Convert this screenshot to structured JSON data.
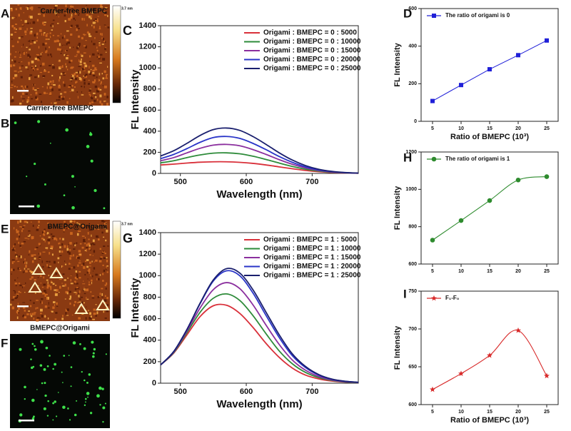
{
  "figure": {
    "images": [
      {
        "letter": "A",
        "caption": "Carrier-free BMEPC",
        "colorbar": "3.7 nm"
      },
      {
        "letter": "B",
        "caption": "Carrier-free BMEPC"
      },
      {
        "letter": "E",
        "caption": "BMEPC@Origami",
        "colorbar": "3.7 nm"
      },
      {
        "letter": "F",
        "caption": "BMEPC@Origami"
      }
    ]
  },
  "chart_data": [
    {
      "type": "line",
      "letter": "C",
      "xlabel": "Wavelength (nm)",
      "ylabel": "FL Intensity",
      "x": [
        470,
        490,
        510,
        530,
        550,
        570,
        590,
        610,
        630,
        650,
        670,
        690,
        710,
        730,
        750,
        770
      ],
      "xlim": [
        470,
        770
      ],
      "xticks": [
        500,
        600,
        700
      ],
      "ylim": [
        0,
        1400
      ],
      "yticks": [
        0,
        200,
        400,
        600,
        800,
        1000,
        1200,
        1400
      ],
      "smooth": true,
      "marker": "none",
      "legend": "upper right",
      "series": [
        {
          "name": "Origami : BMEPC = 0 : 5000",
          "color": "#d9303a",
          "values": [
            80,
            88,
            98,
            106,
            110,
            110,
            105,
            95,
            80,
            62,
            44,
            28,
            16,
            8,
            4,
            2
          ]
        },
        {
          "name": "Origami : BMEPC = 0 : 10000",
          "color": "#2e8b3a",
          "values": [
            100,
            120,
            150,
            175,
            192,
            195,
            186,
            163,
            132,
            98,
            66,
            40,
            22,
            11,
            5,
            2
          ]
        },
        {
          "name": "Origami : BMEPC = 0 : 15000",
          "color": "#8b2f9e",
          "values": [
            120,
            150,
            195,
            238,
            268,
            275,
            262,
            226,
            180,
            130,
            86,
            52,
            28,
            14,
            6,
            2
          ]
        },
        {
          "name": "Origami : BMEPC = 0 : 20000",
          "color": "#2a35c8",
          "values": [
            140,
            180,
            235,
            295,
            340,
            350,
            332,
            285,
            225,
            160,
            105,
            62,
            33,
            16,
            7,
            3
          ]
        },
        {
          "name": "Origami : BMEPC = 0 : 25000",
          "color": "#1a1f6e",
          "values": [
            165,
            215,
            285,
            360,
            415,
            430,
            408,
            350,
            275,
            195,
            126,
            74,
            39,
            19,
            8,
            3
          ]
        }
      ]
    },
    {
      "type": "line",
      "letter": "D",
      "xlabel": "Ratio of BMEPC (10³)",
      "ylabel": "FL Intensity",
      "x": [
        5,
        10,
        15,
        20,
        25
      ],
      "xlim": [
        3,
        27
      ],
      "xticks": [
        5,
        10,
        15,
        20,
        25
      ],
      "ylim": [
        0,
        600
      ],
      "yticks": [
        0,
        200,
        400,
        600
      ],
      "smooth": false,
      "marker": "square",
      "legend": "upper left",
      "series": [
        {
          "name": "The ratio of origami is 0",
          "color": "#2020d8",
          "values": [
            108,
            193,
            277,
            352,
            430
          ]
        }
      ]
    },
    {
      "type": "line",
      "letter": "G",
      "xlabel": "Wavelength (nm)",
      "ylabel": "FL Intensity",
      "x": [
        470,
        490,
        510,
        530,
        550,
        570,
        590,
        610,
        630,
        650,
        670,
        690,
        710,
        730,
        750,
        770
      ],
      "xlim": [
        470,
        770
      ],
      "xticks": [
        500,
        600,
        700
      ],
      "ylim": [
        0,
        1400
      ],
      "yticks": [
        0,
        200,
        400,
        600,
        800,
        1000,
        1200,
        1400
      ],
      "smooth": true,
      "marker": "none",
      "legend": "upper right",
      "series": [
        {
          "name": "Origami : BMEPC = 1 : 5000",
          "color": "#d9303a",
          "values": [
            170,
            280,
            450,
            620,
            720,
            725,
            650,
            520,
            370,
            240,
            140,
            75,
            40,
            20,
            10,
            5
          ]
        },
        {
          "name": "Origami : BMEPC = 1 : 10000",
          "color": "#2e8b3a",
          "values": [
            170,
            285,
            470,
            660,
            790,
            830,
            770,
            630,
            460,
            300,
            180,
            100,
            52,
            26,
            12,
            6
          ]
        },
        {
          "name": "Origami : BMEPC = 1 : 15000",
          "color": "#8b2f9e",
          "values": [
            170,
            290,
            485,
            700,
            870,
            935,
            880,
            730,
            540,
            360,
            215,
            120,
            62,
            30,
            14,
            7
          ]
        },
        {
          "name": "Origami : BMEPC = 1 : 20000",
          "color": "#2a35c8",
          "values": [
            170,
            295,
            500,
            740,
            950,
            1045,
            1000,
            840,
            630,
            425,
            255,
            145,
            75,
            36,
            17,
            8
          ]
        },
        {
          "name": "Origami : BMEPC = 1 : 25000",
          "color": "#1a1f6e",
          "values": [
            170,
            295,
            500,
            745,
            960,
            1065,
            1025,
            870,
            660,
            450,
            272,
            155,
            80,
            38,
            18,
            8
          ]
        }
      ]
    },
    {
      "type": "line",
      "letter": "H",
      "ylabel": "FL Intensity",
      "x": [
        5,
        10,
        15,
        20,
        25
      ],
      "xlim": [
        3,
        27
      ],
      "xticks": [
        5,
        10,
        15,
        20,
        25
      ],
      "ylim": [
        600,
        1200
      ],
      "yticks": [
        600,
        800,
        1000,
        1200
      ],
      "smooth": true,
      "marker": "circle",
      "legend": "upper left",
      "series": [
        {
          "name": "The ratio of origami is 1",
          "color": "#2e8b2e",
          "values": [
            728,
            833,
            940,
            1050,
            1068
          ]
        }
      ]
    },
    {
      "type": "line",
      "letter": "I",
      "xlabel": "Ratio of BMEPC (10³)",
      "ylabel": "FL Intensity",
      "x": [
        5,
        10,
        15,
        20,
        25
      ],
      "xlim": [
        3,
        27
      ],
      "xticks": [
        5,
        10,
        15,
        20,
        25
      ],
      "ylim": [
        600,
        750
      ],
      "yticks": [
        600,
        650,
        700,
        750
      ],
      "smooth": true,
      "marker": "star",
      "legend": "upper left",
      "series": [
        {
          "name": "F₁-F₀",
          "color": "#d82a2a",
          "values": [
            620,
            641,
            665,
            698,
            638
          ]
        }
      ]
    }
  ]
}
